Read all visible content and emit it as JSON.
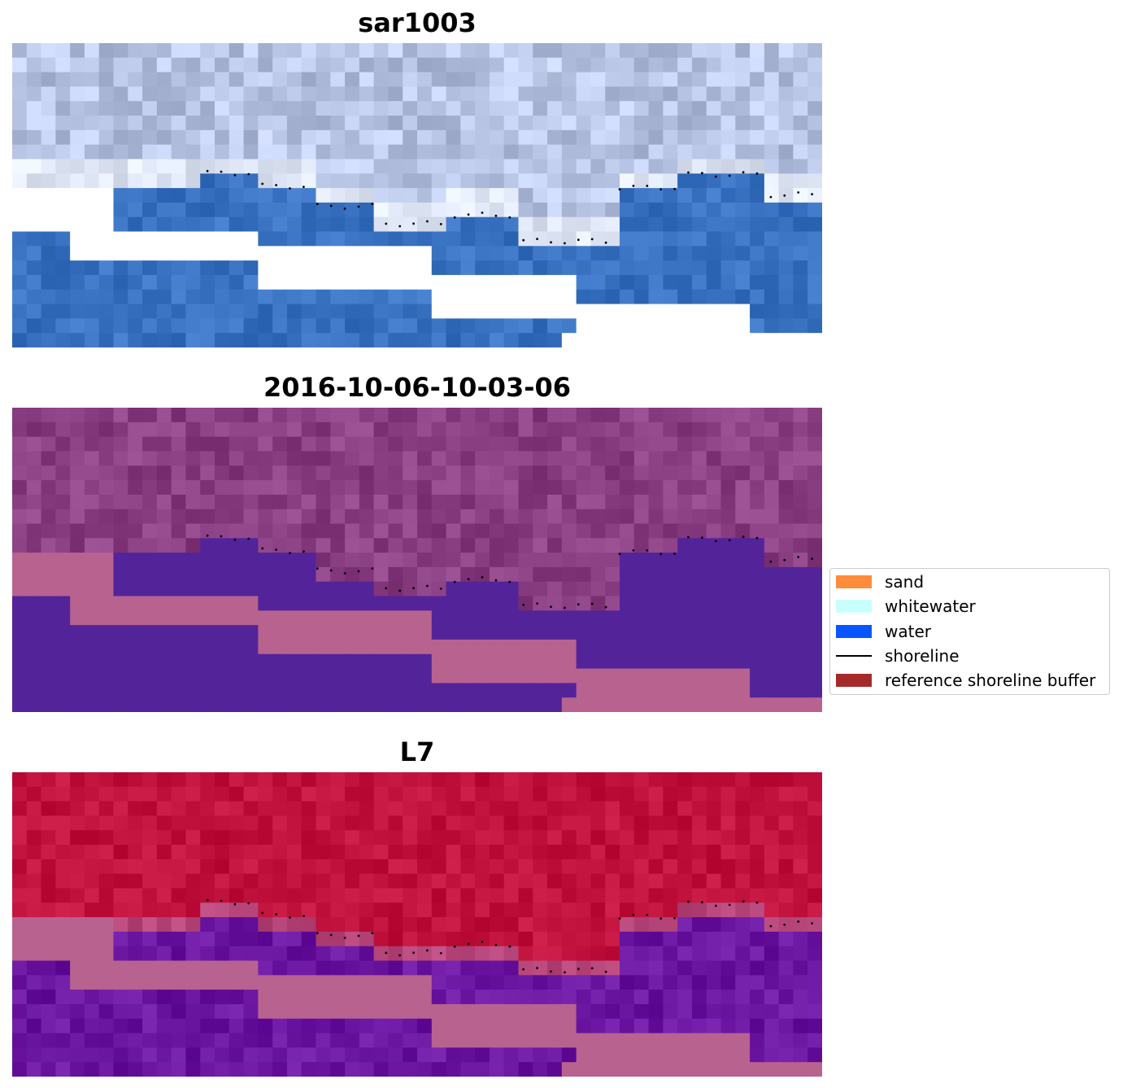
{
  "panels": [
    {
      "title": "sar1003",
      "image": "rgb-composite"
    },
    {
      "title": "2016-10-06-10-03-06",
      "image": "classified"
    },
    {
      "title": "L7",
      "image": "index"
    }
  ],
  "legend": {
    "items": [
      {
        "label": "sand",
        "kind": "patch",
        "color": "#ff8c3a"
      },
      {
        "label": "whitewater",
        "kind": "patch",
        "color": "#c8fffd"
      },
      {
        "label": "water",
        "kind": "patch",
        "color": "#0a55ff"
      },
      {
        "label": "shoreline",
        "kind": "line",
        "color": "#000000"
      },
      {
        "label": "reference shoreline buffer",
        "kind": "patch",
        "color": "#a52a2a"
      }
    ]
  },
  "colors": {
    "mask_nodata_p1": "#ffffff",
    "mask_nodata_p2": "#b8628f",
    "mask_nodata_p3": "#b8628f",
    "water_p2": "#53239a",
    "land_p2": "#8a3f83",
    "land_p3": "#c0123c",
    "water_p3": "#6a16a0",
    "sky_p1": "#b8c4e4",
    "water_p1": "#3a72c2",
    "shoreline_dots": "#000000"
  }
}
